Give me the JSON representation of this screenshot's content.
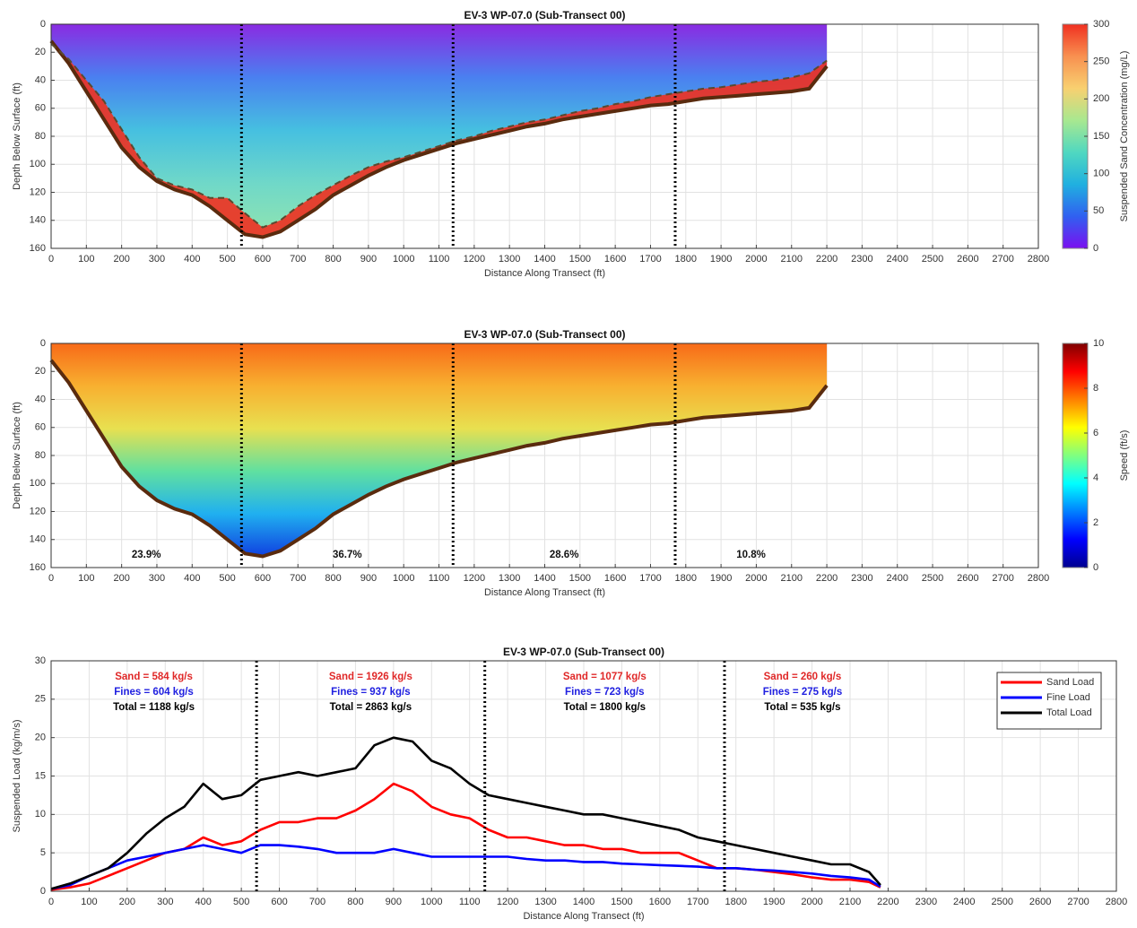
{
  "chart_data": [
    {
      "type": "section",
      "title": "EV-3 WP-07.0 (Sub-Transect 00)",
      "xlabel": "Distance Along Transect (ft)",
      "ylabel": "Depth Below Surface (ft)",
      "colorbar_label": "Suspended Sand Concentration (mg/L)",
      "xlim": [
        0,
        2800
      ],
      "xticks": [
        0,
        100,
        200,
        300,
        400,
        500,
        600,
        700,
        800,
        900,
        1000,
        1100,
        1200,
        1300,
        1400,
        1500,
        1600,
        1700,
        1800,
        1900,
        2000,
        2100,
        2200,
        2300,
        2400,
        2500,
        2600,
        2700,
        2800
      ],
      "ylim": [
        0,
        160
      ],
      "yticks": [
        0,
        20,
        40,
        60,
        80,
        100,
        120,
        140,
        160
      ],
      "y_reversed": true,
      "grid": true,
      "clim": [
        0,
        300
      ],
      "cticks": [
        0,
        50,
        100,
        150,
        200,
        250,
        300
      ],
      "colormap": [
        "#7a10f0",
        "#3060f0",
        "#20b0e0",
        "#50d8c0",
        "#a8e890",
        "#f8d070",
        "#f89050",
        "#f03020"
      ],
      "area_colors": [
        "#8a2be2",
        "#4a80f0",
        "#46c0e0",
        "#70d8c8",
        "#90e4b0"
      ],
      "vlines": [
        540,
        1140,
        1770
      ],
      "x": [
        0,
        50,
        100,
        150,
        200,
        250,
        300,
        350,
        400,
        450,
        500,
        550,
        600,
        650,
        700,
        750,
        800,
        850,
        900,
        950,
        1000,
        1050,
        1100,
        1150,
        1200,
        1250,
        1300,
        1350,
        1400,
        1450,
        1500,
        1550,
        1600,
        1650,
        1700,
        1750,
        1800,
        1850,
        1900,
        1950,
        2000,
        2050,
        2100,
        2150,
        2200
      ],
      "series": [
        {
          "color": "#5a2b0e",
          "values": [
            12,
            28,
            48,
            68,
            88,
            102,
            112,
            118,
            122,
            130,
            140,
            150,
            152,
            148,
            140,
            132,
            122,
            115,
            108,
            102,
            97,
            93,
            89,
            85,
            82,
            79,
            76,
            73,
            71,
            68,
            66,
            64,
            62,
            60,
            58,
            57,
            55,
            53,
            52,
            51,
            50,
            49,
            48,
            46,
            30
          ]
        },
        {
          "color": "#5a4a30",
          "dashed": true,
          "fill": "#f03020",
          "values": [
            14,
            25,
            40,
            55,
            75,
            95,
            110,
            115,
            118,
            124,
            124,
            135,
            145,
            140,
            130,
            122,
            115,
            108,
            102,
            98,
            95,
            91,
            87,
            83,
            80,
            76,
            73,
            70,
            68,
            65,
            62,
            60,
            57,
            55,
            52,
            50,
            48,
            46,
            45,
            43,
            41,
            40,
            38,
            35,
            26
          ]
        }
      ]
    },
    {
      "type": "section",
      "title": "EV-3 WP-07.0 (Sub-Transect 00)",
      "xlabel": "Distance Along Transect (ft)",
      "ylabel": "Depth Below Surface (ft)",
      "colorbar_label": "Speed (ft/s)",
      "xlim": [
        0,
        2800
      ],
      "xticks": [
        0,
        100,
        200,
        300,
        400,
        500,
        600,
        700,
        800,
        900,
        1000,
        1100,
        1200,
        1300,
        1400,
        1500,
        1600,
        1700,
        1800,
        1900,
        2000,
        2100,
        2200,
        2300,
        2400,
        2500,
        2600,
        2700,
        2800
      ],
      "ylim": [
        0,
        160
      ],
      "yticks": [
        0,
        20,
        40,
        60,
        80,
        100,
        120,
        140,
        160
      ],
      "y_reversed": true,
      "grid": true,
      "clim": [
        0,
        10
      ],
      "cticks": [
        0,
        2,
        4,
        6,
        8,
        10
      ],
      "colormap": [
        "#00008f",
        "#0000ff",
        "#0080ff",
        "#00ffff",
        "#80ff80",
        "#ffff00",
        "#ff8000",
        "#ff0000",
        "#800000"
      ],
      "area_colors": [
        "#f86a18",
        "#f8b030",
        "#e8e050",
        "#60e0a0",
        "#20b0f0",
        "#1040e0"
      ],
      "vlines": [
        540,
        1140,
        1770
      ],
      "annotations": [
        "23.9%",
        "36.7%",
        "28.6%",
        "10.8%"
      ],
      "x": [
        0,
        50,
        100,
        150,
        200,
        250,
        300,
        350,
        400,
        450,
        500,
        550,
        600,
        650,
        700,
        750,
        800,
        850,
        900,
        950,
        1000,
        1050,
        1100,
        1150,
        1200,
        1250,
        1300,
        1350,
        1400,
        1450,
        1500,
        1550,
        1600,
        1650,
        1700,
        1750,
        1800,
        1850,
        1900,
        1950,
        2000,
        2050,
        2100,
        2150,
        2200
      ],
      "series": [
        {
          "color": "#5a2b0e",
          "values": [
            12,
            28,
            48,
            68,
            88,
            102,
            112,
            118,
            122,
            130,
            140,
            150,
            152,
            148,
            140,
            132,
            122,
            115,
            108,
            102,
            97,
            93,
            89,
            85,
            82,
            79,
            76,
            73,
            71,
            68,
            66,
            64,
            62,
            60,
            58,
            57,
            55,
            53,
            52,
            51,
            50,
            49,
            48,
            46,
            30
          ]
        }
      ]
    },
    {
      "type": "line",
      "title": "EV-3 WP-07.0 (Sub-Transect 00)",
      "xlabel": "Distance Along Transect (ft)",
      "ylabel": "Suspended Load (kg/m/s)",
      "xlim": [
        0,
        2800
      ],
      "xticks": [
        0,
        100,
        200,
        300,
        400,
        500,
        600,
        700,
        800,
        900,
        1000,
        1100,
        1200,
        1300,
        1400,
        1500,
        1600,
        1700,
        1800,
        1900,
        2000,
        2100,
        2200,
        2300,
        2400,
        2500,
        2600,
        2700,
        2800
      ],
      "ylim": [
        0,
        30
      ],
      "yticks": [
        0,
        5,
        10,
        15,
        20,
        25,
        30
      ],
      "grid": true,
      "legend": "upper-right",
      "vlines": [
        540,
        1140,
        1770
      ],
      "annotations": [
        [
          {
            "text": "Sand = 584 kg/s",
            "color": "#e02828"
          },
          {
            "text": "Fines = 604 kg/s",
            "color": "#2020e0"
          },
          {
            "text": "Total = 1188 kg/s",
            "color": "#000000"
          }
        ],
        [
          {
            "text": "Sand = 1926 kg/s",
            "color": "#e02828"
          },
          {
            "text": "Fines = 937 kg/s",
            "color": "#2020e0"
          },
          {
            "text": "Total = 2863 kg/s",
            "color": "#000000"
          }
        ],
        [
          {
            "text": "Sand = 1077 kg/s",
            "color": "#e02828"
          },
          {
            "text": "Fines = 723 kg/s",
            "color": "#2020e0"
          },
          {
            "text": "Total = 1800 kg/s",
            "color": "#000000"
          }
        ],
        [
          {
            "text": "Sand = 260 kg/s",
            "color": "#e02828"
          },
          {
            "text": "Fines = 275 kg/s",
            "color": "#2020e0"
          },
          {
            "text": "Total = 535 kg/s",
            "color": "#000000"
          }
        ]
      ],
      "x": [
        0,
        50,
        100,
        150,
        200,
        250,
        300,
        350,
        400,
        450,
        500,
        550,
        600,
        650,
        700,
        750,
        800,
        850,
        900,
        950,
        1000,
        1050,
        1100,
        1150,
        1200,
        1250,
        1300,
        1350,
        1400,
        1450,
        1500,
        1550,
        1600,
        1650,
        1700,
        1750,
        1800,
        1850,
        1900,
        1950,
        2000,
        2050,
        2100,
        2150,
        2180
      ],
      "series": [
        {
          "name": "Sand Load",
          "color": "#ff0000",
          "values": [
            0.2,
            0.5,
            1,
            2,
            3,
            4,
            5,
            5.5,
            7,
            6,
            6.5,
            8,
            9,
            9,
            9.5,
            9.5,
            10.5,
            12,
            14,
            13,
            11,
            10,
            9.5,
            8,
            7,
            7,
            6.5,
            6,
            6,
            5.5,
            5.5,
            5,
            5,
            5,
            4,
            3,
            3,
            2.8,
            2.5,
            2.2,
            1.8,
            1.5,
            1.5,
            1.2,
            0.5
          ]
        },
        {
          "name": "Fine Load",
          "color": "#0000ff",
          "values": [
            0.3,
            0.8,
            2,
            3,
            4,
            4.5,
            5,
            5.5,
            6,
            5.5,
            5,
            6,
            6,
            5.8,
            5.5,
            5,
            5,
            5,
            5.5,
            5,
            4.5,
            4.5,
            4.5,
            4.5,
            4.5,
            4.2,
            4,
            4,
            3.8,
            3.8,
            3.6,
            3.5,
            3.4,
            3.3,
            3.2,
            3,
            3,
            2.8,
            2.7,
            2.5,
            2.3,
            2,
            1.8,
            1.5,
            0.6
          ]
        },
        {
          "name": "Total Load",
          "color": "#000000",
          "values": [
            0.3,
            1,
            2,
            3,
            5,
            7.5,
            9.5,
            11,
            14,
            12,
            12.5,
            14.5,
            15,
            15.5,
            15,
            15.5,
            16,
            19,
            20,
            19.5,
            17,
            16,
            14,
            12.5,
            12,
            11.5,
            11,
            10.5,
            10,
            10,
            9.5,
            9,
            8.5,
            8,
            7,
            6.5,
            6,
            5.5,
            5,
            4.5,
            4,
            3.5,
            3.5,
            2.5,
            0.8
          ]
        }
      ]
    }
  ]
}
